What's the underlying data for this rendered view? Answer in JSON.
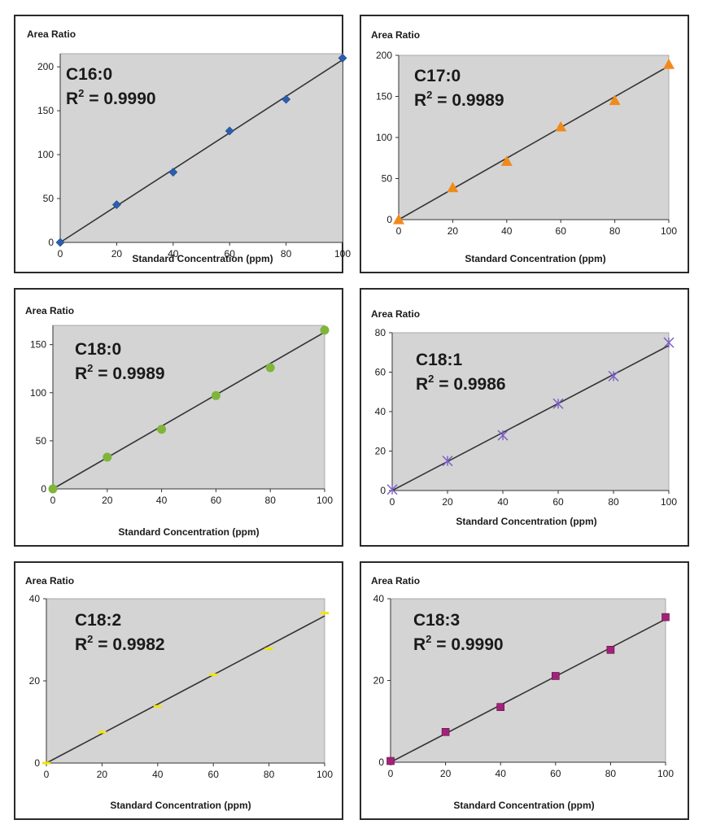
{
  "chart_data": [
    {
      "type": "scatter",
      "name": "C16:0",
      "r2_label": "R",
      "r2_sup": "2",
      "r2_value": " = 0.9990",
      "ylabel": "Area Ratio",
      "xlabel": "Standard Concentration (ppm)",
      "x": [
        0,
        20,
        40,
        60,
        80,
        100
      ],
      "y": [
        0,
        43,
        80,
        127,
        163,
        210
      ],
      "trendline": [
        [
          0,
          0
        ],
        [
          100,
          208
        ]
      ],
      "xlim": [
        0,
        100
      ],
      "ylim": [
        0,
        215
      ],
      "xticks": [
        0,
        20,
        40,
        60,
        80,
        100
      ],
      "yticks": [
        0,
        50,
        100,
        150,
        200
      ],
      "marker": "diamond",
      "color": "#2b5fad"
    },
    {
      "type": "scatter",
      "name": "C17:0",
      "r2_label": "R",
      "r2_sup": "2",
      "r2_value": " = 0.9989",
      "ylabel": "Area Ratio",
      "xlabel": "Standard Concentration (ppm)",
      "x": [
        0,
        20,
        40,
        60,
        80,
        100
      ],
      "y": [
        0,
        39,
        71,
        113,
        145,
        189
      ],
      "trendline": [
        [
          0,
          0
        ],
        [
          100,
          187
        ]
      ],
      "xlim": [
        0,
        100
      ],
      "ylim": [
        0,
        200
      ],
      "xticks": [
        0,
        20,
        40,
        60,
        80,
        100
      ],
      "yticks": [
        0,
        50,
        100,
        150,
        200
      ],
      "marker": "triangle",
      "color": "#f08a1c"
    },
    {
      "type": "scatter",
      "name": "C18:0",
      "r2_label": "R",
      "r2_sup": "2",
      "r2_value": " = 0.9989",
      "ylabel": "Area Ratio",
      "xlabel": "Standard Concentration (ppm)",
      "x": [
        0,
        20,
        40,
        60,
        80,
        100
      ],
      "y": [
        0,
        33,
        62,
        97,
        126,
        165
      ],
      "trendline": [
        [
          0,
          0
        ],
        [
          100,
          163
        ]
      ],
      "xlim": [
        0,
        100
      ],
      "ylim": [
        0,
        170
      ],
      "xticks": [
        0,
        20,
        40,
        60,
        80,
        100
      ],
      "yticks": [
        0,
        50,
        100,
        150
      ],
      "marker": "circle",
      "color": "#7fb53a"
    },
    {
      "type": "scatter",
      "name": "C18:1",
      "r2_label": "R",
      "r2_sup": "2",
      "r2_value": " = 0.9986",
      "ylabel": "Area Ratio",
      "xlabel": "Standard Concentration (ppm)",
      "x": [
        0,
        20,
        40,
        60,
        80,
        100
      ],
      "y": [
        0.5,
        15,
        28,
        44,
        58,
        75
      ],
      "trendline": [
        [
          0,
          0
        ],
        [
          100,
          73.5
        ]
      ],
      "xlim": [
        0,
        100
      ],
      "ylim": [
        0,
        80
      ],
      "xticks": [
        0,
        20,
        40,
        60,
        80,
        100
      ],
      "yticks": [
        0,
        20,
        40,
        60,
        80
      ],
      "marker": "star",
      "color": "#7a5cc4"
    },
    {
      "type": "scatter",
      "name": "C18:2",
      "r2_label": "R",
      "r2_sup": "2",
      "r2_value": " = 0.9982",
      "ylabel": "Area Ratio",
      "xlabel": "Standard Concentration (ppm)",
      "x": [
        0,
        20,
        40,
        60,
        80,
        100
      ],
      "y": [
        0,
        7.5,
        13.8,
        21.5,
        27.8,
        36.5
      ],
      "trendline": [
        [
          0,
          0
        ],
        [
          100,
          35.8
        ]
      ],
      "xlim": [
        0,
        100
      ],
      "ylim": [
        0,
        40
      ],
      "xticks": [
        0,
        20,
        40,
        60,
        80,
        100
      ],
      "yticks": [
        0,
        20,
        40
      ],
      "marker": "dash",
      "color": "#f2e600"
    },
    {
      "type": "scatter",
      "name": "C18:3",
      "r2_label": "R",
      "r2_sup": "2",
      "r2_value": " = 0.9990",
      "ylabel": "Area Ratio",
      "xlabel": "Standard Concentration (ppm)",
      "x": [
        0,
        20,
        40,
        60,
        80,
        100
      ],
      "y": [
        0.3,
        7.4,
        13.5,
        21.1,
        27.5,
        35.5
      ],
      "trendline": [
        [
          0,
          0
        ],
        [
          100,
          35
        ]
      ],
      "xlim": [
        0,
        100
      ],
      "ylim": [
        0,
        40
      ],
      "xticks": [
        0,
        20,
        40,
        60,
        80,
        100
      ],
      "yticks": [
        0,
        20,
        40
      ],
      "marker": "square",
      "color": "#a3217a"
    }
  ],
  "style": {
    "plot_bg": "#d4d4d4",
    "trend_color": "#333333",
    "axis_color": "#333333"
  }
}
